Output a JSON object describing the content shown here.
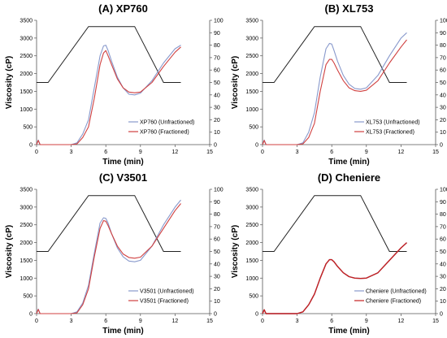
{
  "chart_data": [
    {
      "type": "line",
      "title": "(A) XP760",
      "xlabel": "Time (min)",
      "ylabel": "Viscosity (cP)",
      "xlim": [
        0,
        15
      ],
      "ylim": [
        0,
        3500
      ],
      "y2lim": [
        0,
        100
      ],
      "x_ticks": [
        "0",
        "3",
        "6",
        "9",
        "12",
        "15"
      ],
      "y_ticks": [
        "0",
        "500",
        "1000",
        "1500",
        "2000",
        "2500",
        "3000",
        "3500"
      ],
      "y2_ticks": [
        "0",
        "10",
        "20",
        "30",
        "40",
        "50",
        "60",
        "70",
        "80",
        "90",
        "100"
      ],
      "legend": "right",
      "temperature": {
        "color": "#222222",
        "x": [
          0,
          0.3,
          1,
          4.5,
          5.5,
          8.5,
          11,
          12.5
        ],
        "y2": [
          50,
          50,
          50,
          95,
          95,
          95,
          50,
          50
        ]
      },
      "series": [
        {
          "name": "XP760 (Unfractioned)",
          "color": "#8899cc",
          "x": [
            0,
            0.15,
            0.3,
            0.4,
            2,
            3,
            3.5,
            4,
            4.5,
            5,
            5.5,
            5.8,
            6,
            6.2,
            6.5,
            7,
            7.5,
            8,
            8.5,
            9,
            10,
            11,
            12,
            12.5
          ],
          "y": [
            0,
            130,
            0,
            0,
            0,
            0,
            50,
            300,
            700,
            1600,
            2500,
            2780,
            2800,
            2650,
            2350,
            1900,
            1600,
            1420,
            1400,
            1450,
            1800,
            2300,
            2700,
            2800
          ]
        },
        {
          "name": "XP760 (Fractioned)",
          "color": "#d04040",
          "x": [
            0,
            0.15,
            0.3,
            0.4,
            2,
            3,
            3.5,
            4,
            4.5,
            5,
            5.5,
            5.8,
            6,
            6.2,
            6.5,
            7,
            7.5,
            8,
            8.5,
            9,
            10,
            11,
            12,
            12.5
          ],
          "y": [
            0,
            120,
            0,
            0,
            0,
            0,
            20,
            200,
            500,
            1300,
            2250,
            2580,
            2650,
            2500,
            2250,
            1850,
            1600,
            1480,
            1460,
            1480,
            1750,
            2200,
            2600,
            2750
          ]
        }
      ]
    },
    {
      "type": "line",
      "title": "(B) XL753",
      "xlabel": "Time (min)",
      "ylabel": "Viscosity (cP)",
      "xlim": [
        0,
        15
      ],
      "ylim": [
        0,
        3500
      ],
      "y2lim": [
        0,
        100
      ],
      "x_ticks": [
        "0",
        "3",
        "6",
        "9",
        "12",
        "15"
      ],
      "y_ticks": [
        "0",
        "500",
        "1000",
        "1500",
        "2000",
        "2500",
        "3000",
        "3500"
      ],
      "y2_ticks": [
        "0",
        "10",
        "20",
        "30",
        "40",
        "50",
        "60",
        "70",
        "80",
        "90",
        "100"
      ],
      "legend": "right",
      "temperature": {
        "color": "#222222",
        "x": [
          0,
          0.3,
          1,
          4.5,
          5.5,
          8.5,
          11,
          12.5
        ],
        "y2": [
          50,
          50,
          50,
          95,
          95,
          95,
          50,
          50
        ]
      },
      "series": [
        {
          "name": "XL753 (Unfractioned)",
          "color": "#8899cc",
          "x": [
            0,
            0.15,
            0.3,
            0.4,
            2,
            3,
            3.5,
            4,
            4.5,
            5,
            5.5,
            5.8,
            6,
            6.2,
            6.5,
            7,
            7.5,
            8,
            8.5,
            9,
            10,
            11,
            12,
            12.5
          ],
          "y": [
            0,
            130,
            0,
            0,
            0,
            0,
            50,
            350,
            900,
            1900,
            2700,
            2850,
            2830,
            2650,
            2350,
            1950,
            1700,
            1580,
            1560,
            1600,
            1950,
            2500,
            3000,
            3150
          ]
        },
        {
          "name": "XL753 (Fractioned)",
          "color": "#d04040",
          "x": [
            0,
            0.15,
            0.3,
            0.4,
            2,
            3,
            3.5,
            4,
            4.5,
            5,
            5.5,
            5.8,
            6,
            6.2,
            6.5,
            7,
            7.5,
            8,
            8.5,
            9,
            10,
            11,
            12,
            12.5
          ],
          "y": [
            0,
            120,
            0,
            0,
            0,
            0,
            20,
            200,
            600,
            1500,
            2250,
            2400,
            2400,
            2300,
            2100,
            1800,
            1600,
            1520,
            1500,
            1530,
            1800,
            2300,
            2750,
            2950
          ]
        }
      ]
    },
    {
      "type": "line",
      "title": "(C) V3501",
      "xlabel": "Time (min)",
      "ylabel": "Viscosity (cP)",
      "xlim": [
        0,
        15
      ],
      "ylim": [
        0,
        3500
      ],
      "y2lim": [
        0,
        100
      ],
      "x_ticks": [
        "0",
        "3",
        "6",
        "9",
        "12",
        "15"
      ],
      "y_ticks": [
        "0",
        "500",
        "1000",
        "1500",
        "2000",
        "2500",
        "3000",
        "3500"
      ],
      "y2_ticks": [
        "0",
        "10",
        "20",
        "30",
        "40",
        "50",
        "60",
        "70",
        "80",
        "90",
        "100"
      ],
      "legend": "right",
      "temperature": {
        "color": "#222222",
        "x": [
          0,
          0.3,
          1,
          4.5,
          5.5,
          8.5,
          11,
          12.5
        ],
        "y2": [
          50,
          50,
          50,
          95,
          95,
          95,
          50,
          50
        ]
      },
      "series": [
        {
          "name": "V3501 (Unfractioned)",
          "color": "#8899cc",
          "x": [
            0,
            0.15,
            0.3,
            0.4,
            2,
            3,
            3.5,
            4,
            4.5,
            5,
            5.5,
            5.8,
            6,
            6.2,
            6.5,
            7,
            7.5,
            8,
            8.5,
            9,
            10,
            11,
            12,
            12.5
          ],
          "y": [
            0,
            130,
            0,
            0,
            0,
            0,
            50,
            300,
            800,
            1700,
            2550,
            2700,
            2680,
            2550,
            2250,
            1850,
            1600,
            1480,
            1460,
            1500,
            1900,
            2500,
            3000,
            3200
          ]
        },
        {
          "name": "V3501 (Fractioned)",
          "color": "#d04040",
          "x": [
            0,
            0.15,
            0.3,
            0.4,
            2,
            3,
            3.5,
            4,
            4.5,
            5,
            5.5,
            5.8,
            6,
            6.2,
            6.5,
            7,
            7.5,
            8,
            8.5,
            9,
            10,
            11,
            12,
            12.5
          ],
          "y": [
            0,
            120,
            0,
            0,
            0,
            0,
            20,
            250,
            700,
            1600,
            2400,
            2620,
            2600,
            2480,
            2250,
            1900,
            1680,
            1580,
            1560,
            1590,
            1900,
            2400,
            2900,
            3100
          ]
        }
      ]
    },
    {
      "type": "line",
      "title": "(D) Cheniere",
      "xlabel": "Time (min)",
      "ylabel": "Viscosity (cP)",
      "xlim": [
        0,
        15
      ],
      "ylim": [
        0,
        3500
      ],
      "y2lim": [
        0,
        100
      ],
      "x_ticks": [
        "0",
        "3",
        "6",
        "9",
        "12",
        "15"
      ],
      "y_ticks": [
        "0",
        "500",
        "1000",
        "1500",
        "2000",
        "2500",
        "3000",
        "3500"
      ],
      "y2_ticks": [
        "0",
        "10",
        "20",
        "30",
        "40",
        "50",
        "60",
        "70",
        "80",
        "90",
        "100"
      ],
      "legend": "right",
      "temperature": {
        "color": "#222222",
        "x": [
          0,
          0.3,
          1,
          4.5,
          5.5,
          8.5,
          11,
          12.5
        ],
        "y2": [
          50,
          50,
          50,
          95,
          95,
          95,
          50,
          50
        ]
      },
      "series": [
        {
          "name": "Cheniere (Unfractioned)",
          "color": "#8899cc",
          "x": [
            0,
            0.15,
            0.3,
            0.4,
            2,
            3,
            3.5,
            4,
            4.5,
            5,
            5.5,
            5.8,
            6,
            6.2,
            6.5,
            7,
            7.5,
            8,
            8.5,
            9,
            10,
            11,
            12,
            12.5
          ],
          "y": [
            0,
            110,
            0,
            0,
            0,
            0,
            50,
            250,
            550,
            1000,
            1400,
            1520,
            1520,
            1460,
            1330,
            1150,
            1040,
            1000,
            990,
            1000,
            1150,
            1500,
            1850,
            2000
          ]
        },
        {
          "name": "Cheniere (Fractioned)",
          "color": "#c42020",
          "x": [
            0,
            0.15,
            0.3,
            0.4,
            2,
            3,
            3.5,
            4,
            4.5,
            5,
            5.5,
            5.8,
            6,
            6.2,
            6.5,
            7,
            7.5,
            8,
            8.5,
            9,
            10,
            11,
            12,
            12.5
          ],
          "y": [
            0,
            110,
            0,
            0,
            0,
            0,
            50,
            250,
            550,
            1000,
            1400,
            1520,
            1520,
            1460,
            1330,
            1150,
            1040,
            1000,
            990,
            1000,
            1150,
            1500,
            1850,
            2000
          ]
        }
      ]
    }
  ]
}
